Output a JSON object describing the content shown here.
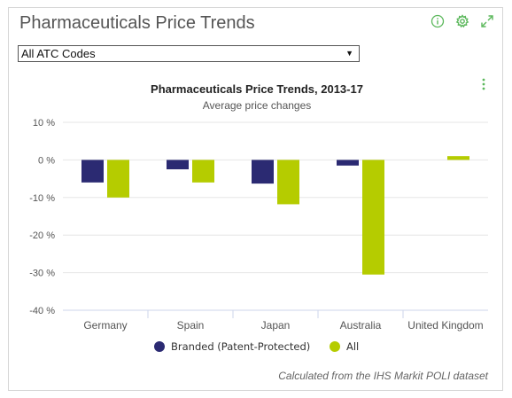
{
  "widget": {
    "title": "Pharmaceuticals Price Trends",
    "icons": [
      "info-icon",
      "settings-gear-icon",
      "expand-icon"
    ],
    "accent_color": "#5cb85c"
  },
  "filter": {
    "selected": "All ATC Codes",
    "arrow": "▼"
  },
  "chart_data": {
    "type": "bar",
    "title": "Pharmaceuticals Price Trends, 2013-17",
    "subtitle": "Average price changes",
    "categories": [
      "Germany",
      "Spain",
      "Japan",
      "Australia",
      "United Kingdom"
    ],
    "series": [
      {
        "name": "Branded (Patent-Protected)",
        "color": "#2b2a72",
        "values": [
          -6,
          -2.5,
          -6.3,
          -1.5,
          null
        ]
      },
      {
        "name": "All",
        "color": "#b5cc00",
        "values": [
          -10,
          -6,
          -11.8,
          -30.5,
          1
        ]
      }
    ],
    "ylim": [
      -40,
      10
    ],
    "yticks": [
      10,
      0,
      -10,
      -20,
      -30,
      -40
    ],
    "ytick_labels": [
      "10 %",
      "0 %",
      "-10 %",
      "-20 %",
      "-30 %",
      "-40 %"
    ],
    "grid": true,
    "legend_position": "bottom-center",
    "menu_icon": "vertical-dots-icon"
  },
  "footer": {
    "note": "Calculated from the IHS Markit POLI dataset"
  }
}
